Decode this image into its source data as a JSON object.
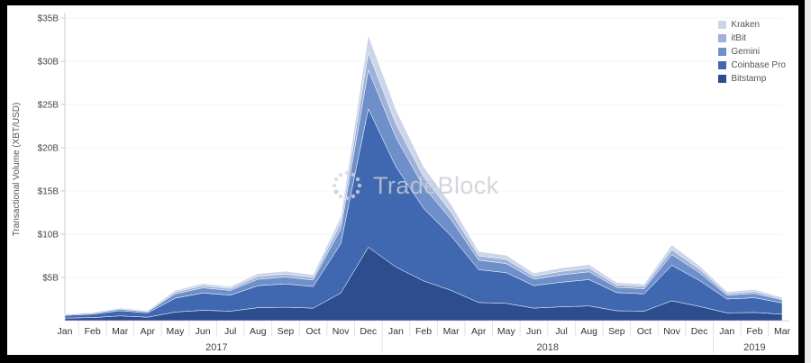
{
  "watermark": {
    "text": "TradeBlock"
  },
  "chart_data": {
    "type": "area",
    "stacked": true,
    "title": "",
    "xlabel": "",
    "ylabel": "Transactional Volume (XBT/USD)",
    "ylim": [
      0,
      35
    ],
    "y_tick_step": 5,
    "y_ticks": [
      "$5B",
      "$10B",
      "$15B",
      "$20B",
      "$25B",
      "$30B",
      "$35B"
    ],
    "grid": "none",
    "legend_position": "top-right",
    "categories": [
      "Jan",
      "Feb",
      "Mar",
      "Apr",
      "May",
      "Jun",
      "Jul",
      "Aug",
      "Sep",
      "Oct",
      "Nov",
      "Dec",
      "Jan",
      "Feb",
      "Mar",
      "Apr",
      "May",
      "Jun",
      "Jul",
      "Aug",
      "Sep",
      "Oct",
      "Nov",
      "Dec",
      "Jan",
      "Feb",
      "Mar"
    ],
    "year_groups": [
      {
        "label": "2017",
        "start": 0,
        "end": 11
      },
      {
        "label": "2018",
        "start": 12,
        "end": 23
      },
      {
        "label": "2019",
        "start": 24,
        "end": 26
      }
    ],
    "series": [
      {
        "name": "Bitstamp",
        "color": "#2d4d8e",
        "values": [
          0.3,
          0.35,
          0.55,
          0.4,
          1.0,
          1.2,
          1.1,
          1.5,
          1.55,
          1.45,
          3.2,
          8.5,
          6.2,
          4.6,
          3.5,
          2.1,
          2.0,
          1.45,
          1.6,
          1.7,
          1.15,
          1.1,
          2.3,
          1.65,
          0.9,
          0.95,
          0.75
        ]
      },
      {
        "name": "Coinbase Pro",
        "color": "#3f68b0",
        "values": [
          0.3,
          0.4,
          0.6,
          0.5,
          1.6,
          2.0,
          1.85,
          2.55,
          2.7,
          2.5,
          5.7,
          16.0,
          11.6,
          8.4,
          6.3,
          3.8,
          3.55,
          2.6,
          2.85,
          3.05,
          2.1,
          2.0,
          4.1,
          3.0,
          1.6,
          1.7,
          1.3
        ]
      },
      {
        "name": "Gemini",
        "color": "#6e8fc9",
        "values": [
          0.1,
          0.12,
          0.18,
          0.15,
          0.5,
          0.6,
          0.55,
          0.75,
          0.8,
          0.75,
          1.7,
          4.5,
          3.4,
          2.5,
          1.9,
          1.1,
          1.05,
          0.75,
          0.85,
          0.9,
          0.6,
          0.6,
          1.25,
          0.9,
          0.45,
          0.5,
          0.35
        ]
      },
      {
        "name": "itBit",
        "color": "#9db1d9",
        "values": [
          0.05,
          0.06,
          0.09,
          0.07,
          0.2,
          0.25,
          0.22,
          0.32,
          0.33,
          0.31,
          0.7,
          2.0,
          1.55,
          1.15,
          0.85,
          0.5,
          0.48,
          0.35,
          0.4,
          0.42,
          0.28,
          0.27,
          0.55,
          0.4,
          0.2,
          0.22,
          0.15
        ]
      },
      {
        "name": "Kraken",
        "color": "#ccd5e9",
        "values": [
          0.05,
          0.06,
          0.09,
          0.07,
          0.2,
          0.25,
          0.22,
          0.32,
          0.33,
          0.31,
          0.7,
          2.0,
          1.65,
          1.15,
          0.9,
          0.5,
          0.48,
          0.35,
          0.4,
          0.42,
          0.28,
          0.27,
          0.55,
          0.4,
          0.2,
          0.22,
          0.15
        ]
      }
    ]
  }
}
